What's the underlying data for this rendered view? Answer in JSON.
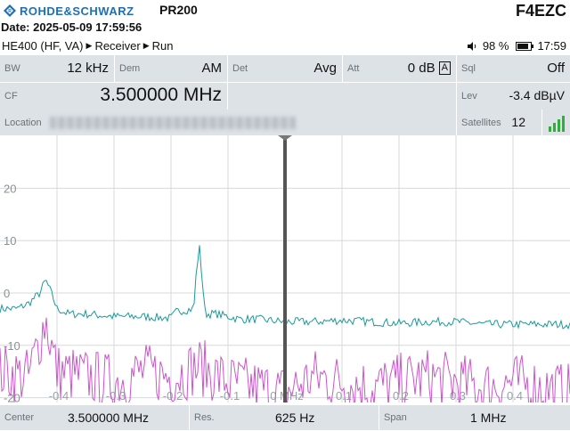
{
  "header": {
    "brand": "ROHDE&SCHWARZ",
    "device": "PR200",
    "callsign": "F4EZC",
    "date_line": "Date: 2025-05-09 17:59:56"
  },
  "status": {
    "nav": [
      "HE400 (HF, VA)",
      "Receiver",
      "Run"
    ],
    "battery": "98 %",
    "time": "17:59"
  },
  "params": {
    "bw": {
      "label": "BW",
      "value": "12 kHz"
    },
    "dem": {
      "label": "Dem",
      "value": "AM"
    },
    "det": {
      "label": "Det",
      "value": "Avg"
    },
    "att": {
      "label": "Att",
      "value": "0 dB",
      "auto": "A"
    },
    "sql": {
      "label": "Sql",
      "value": "Off"
    },
    "cf": {
      "label": "CF",
      "value": "3.500000 MHz"
    },
    "lev": {
      "label": "Lev",
      "value": "-3.4 dBµV"
    },
    "location": {
      "label": "Location",
      "value": ""
    },
    "satellites": {
      "label": "Satellites",
      "value": "12"
    }
  },
  "chart_data": {
    "type": "line",
    "y_ticks": [
      "20",
      "10",
      "0",
      "-10",
      "-20"
    ],
    "ylim": [
      -25,
      25
    ],
    "x_ticks": [
      "-0.4",
      "-0.3",
      "-0.2",
      "-0.1",
      "0 MHz",
      "0.1",
      "0.2",
      "0.3",
      "0.4"
    ],
    "xlim": [
      -0.5,
      0.5
    ],
    "marker_x": 0,
    "series": [
      {
        "color": "#1a9a9a",
        "x": [
          -0.5,
          -0.47,
          -0.45,
          -0.43,
          -0.42,
          -0.41,
          -0.4,
          -0.38,
          -0.35,
          -0.3,
          -0.25,
          -0.2,
          -0.19,
          -0.16,
          -0.155,
          -0.15,
          -0.14,
          -0.12,
          -0.1,
          -0.08,
          -0.05,
          0,
          0.05,
          0.1,
          0.15,
          0.2,
          0.25,
          0.3,
          0.35,
          0.4,
          0.45,
          0.5
        ],
        "values": [
          -3,
          -3,
          -2,
          0,
          2.5,
          0,
          -3,
          -4,
          -4,
          -4.5,
          -4.5,
          -4.8,
          -3.5,
          -3,
          5,
          8.5,
          -4,
          -4,
          -4.5,
          -5,
          -5,
          -5.5,
          -5.5,
          -5.2,
          -5.5,
          -5.8,
          -5.5,
          -5.5,
          -6,
          -6,
          -6,
          -6
        ]
      },
      {
        "color": "#cc55cc",
        "x": [
          -0.5,
          -0.45,
          -0.42,
          -0.4,
          -0.35,
          -0.3,
          -0.25,
          -0.2,
          -0.15,
          -0.1,
          -0.05,
          0,
          0.05,
          0.1,
          0.15,
          0.2,
          0.25,
          0.3,
          0.35,
          0.4,
          0.45,
          0.5
        ],
        "values": [
          -15,
          -16,
          -5,
          -15,
          -16,
          -17,
          -15,
          -16,
          -14,
          -17,
          -18,
          -19,
          -16,
          -17,
          -18,
          -17,
          -16,
          -17,
          -18,
          -17,
          -18,
          -19
        ]
      }
    ]
  },
  "bottom": {
    "center": {
      "label": "Center",
      "value": "3.500000 MHz"
    },
    "res": {
      "label": "Res.",
      "value": "625 Hz"
    },
    "span": {
      "label": "Span",
      "value": "1 MHz"
    }
  }
}
